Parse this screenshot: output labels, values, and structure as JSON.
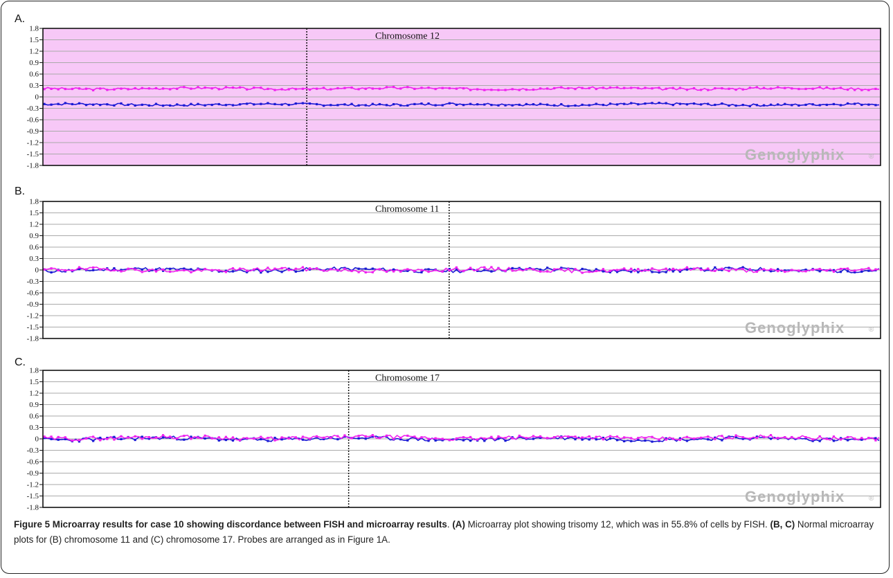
{
  "figure": {
    "colors": {
      "pink_background": "#f7c8f7",
      "series_blue": "#1a1ad4",
      "series_magenta": "#ee22ee",
      "grid": "#aaaaaa",
      "frame": "#111111"
    },
    "watermark": {
      "text": "Genoglyphix",
      "mark": "®"
    }
  },
  "chart_data": [
    {
      "panel_letter": "A.",
      "type": "line",
      "title": "Chromosome 12",
      "ylim": [
        -1.8,
        1.8
      ],
      "yticks": [
        "1.8",
        "1.5",
        "1.2",
        "0.9",
        "0.6",
        "0.3",
        "0",
        "-0.3",
        "-0.6",
        "-0.9",
        "-1.2",
        "-1.5",
        "-1.8"
      ],
      "grid": true,
      "background": "pink",
      "centromere_fraction": 0.315,
      "series": [
        {
          "color": "magenta",
          "mean": 0.22,
          "noise": 0.03,
          "seed": 3
        },
        {
          "color": "blue",
          "mean": -0.2,
          "noise": 0.03,
          "seed": 7
        }
      ]
    },
    {
      "panel_letter": "B.",
      "type": "line",
      "title": "Chromosome 11",
      "ylim": [
        -1.8,
        1.8
      ],
      "yticks": [
        "1.8",
        "1.5",
        "1.2",
        "0.9",
        "0.6",
        "0.3",
        "0",
        "-0.3",
        "-0.6",
        "-0.9",
        "-1.2",
        "-1.5",
        "-1.8"
      ],
      "grid": true,
      "background": "white",
      "centromere_fraction": 0.485,
      "series": [
        {
          "color": "blue",
          "mean": 0.0,
          "noise": 0.05,
          "seed": 11
        },
        {
          "color": "magenta",
          "mean": 0.0,
          "noise": 0.05,
          "seed": 19
        }
      ]
    },
    {
      "panel_letter": "C.",
      "type": "line",
      "title": "Chromosome 17",
      "ylim": [
        -1.8,
        1.8
      ],
      "yticks": [
        "1.8",
        "1.5",
        "1.2",
        "0.9",
        "0.6",
        "0.3",
        "0",
        "-0.3",
        "-0.6",
        "-0.9",
        "-1.2",
        "-1.5",
        "-1.8"
      ],
      "grid": true,
      "background": "white",
      "centromere_fraction": 0.365,
      "series": [
        {
          "color": "blue",
          "mean": 0.0,
          "noise": 0.05,
          "seed": 23
        },
        {
          "color": "magenta",
          "mean": 0.03,
          "noise": 0.05,
          "seed": 29
        }
      ]
    }
  ],
  "caption": {
    "bold_title": "Figure 5 Microarray results for case 10 showing discordance between FISH and microarray results",
    "sep": ". ",
    "a_label": "(A)",
    "a_text": " Microarray plot showing trisomy 12, which was in 55.8% of cells by FISH. ",
    "bc_label": "(B, C)",
    "bc_text": " Normal microarray plots for (B) chromosome 11 and (C) chromosome 17. Probes are arranged as in Figure 1A."
  }
}
